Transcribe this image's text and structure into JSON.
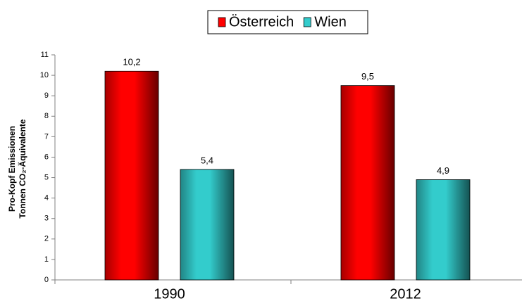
{
  "chart_data": {
    "type": "bar",
    "categories": [
      "1990",
      "2012"
    ],
    "series": [
      {
        "name": "Österreich",
        "color": "#ff0000",
        "values": [
          10.2,
          9.5
        ],
        "value_labels": [
          "10,2",
          "9,5"
        ]
      },
      {
        "name": "Wien",
        "color": "#33cccc",
        "values": [
          5.4,
          4.9
        ],
        "value_labels": [
          "5,4",
          "4,9"
        ]
      }
    ],
    "y_label": [
      "Pro-Kopf Emissionen",
      "Tonnen CO₂-Äquivalente"
    ],
    "ylim": [
      0,
      11
    ],
    "yticks": [
      0,
      1,
      2,
      3,
      4,
      5,
      6,
      7,
      8,
      9,
      10,
      11
    ],
    "legend": "top"
  }
}
